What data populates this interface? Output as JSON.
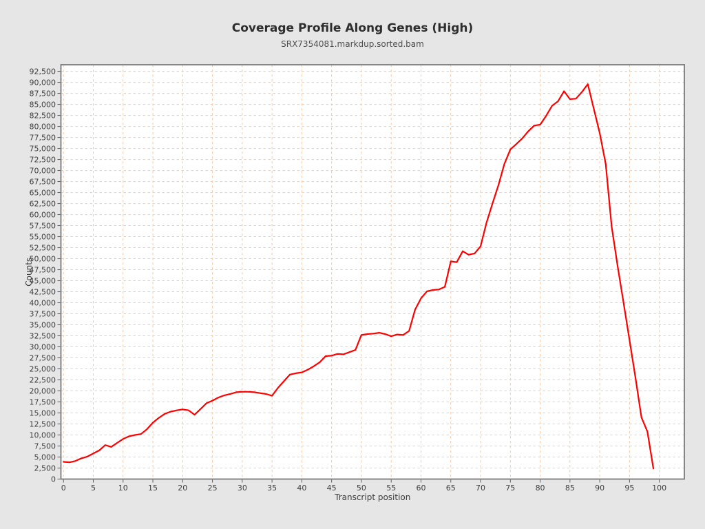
{
  "page": {
    "background": "#e6e6e6"
  },
  "chart_data": {
    "type": "line",
    "title": "Coverage Profile Along Genes (High)",
    "subtitle": "SRX7354081.markdup.sorted.bam",
    "xlabel": "Transcript position",
    "ylabel": "Counts",
    "xlim": [
      -0.43,
      104.2
    ],
    "ylim": [
      0,
      94000
    ],
    "x_ticks": [
      0,
      5,
      10,
      15,
      20,
      25,
      30,
      35,
      40,
      45,
      50,
      55,
      60,
      65,
      70,
      75,
      80,
      85,
      90,
      95,
      100
    ],
    "y_ticks": [
      0,
      2500,
      5000,
      7500,
      10000,
      12500,
      15000,
      17500,
      20000,
      22500,
      25000,
      27500,
      30000,
      32500,
      35000,
      37500,
      40000,
      42500,
      45000,
      47500,
      50000,
      52500,
      55000,
      57500,
      60000,
      62500,
      65000,
      67500,
      70000,
      72500,
      75000,
      77500,
      80000,
      82500,
      85000,
      87500,
      90000,
      92500
    ],
    "y_tick_format": "comma",
    "grid": true,
    "legend": "none",
    "x": [
      0,
      1,
      2,
      3,
      4,
      5,
      6,
      7,
      8,
      9,
      10,
      11,
      12,
      13,
      14,
      15,
      16,
      17,
      18,
      19,
      20,
      21,
      22,
      23,
      24,
      25,
      26,
      27,
      28,
      29,
      30,
      31,
      32,
      33,
      34,
      35,
      36,
      37,
      38,
      39,
      40,
      41,
      42,
      43,
      44,
      45,
      46,
      47,
      48,
      49,
      50,
      51,
      52,
      53,
      54,
      55,
      56,
      57,
      58,
      59,
      60,
      61,
      62,
      63,
      64,
      65,
      66,
      67,
      68,
      69,
      70,
      71,
      72,
      73,
      74,
      75,
      76,
      77,
      78,
      79,
      80,
      81,
      82,
      83,
      84,
      85,
      86,
      87,
      88,
      89,
      90,
      91,
      92,
      93,
      94,
      95,
      96,
      97,
      98,
      99
    ],
    "series": [
      {
        "name": "SRX7354081.markdup.sorted.bam",
        "color": "#fe0000",
        "values": [
          3900,
          3800,
          4100,
          4700,
          5100,
          5800,
          6500,
          7700,
          7300,
          8200,
          9100,
          9700,
          10000,
          10200,
          11300,
          12800,
          13900,
          14800,
          15300,
          15600,
          15800,
          15600,
          14600,
          15900,
          17200,
          17800,
          18500,
          19000,
          19300,
          19700,
          19800,
          19800,
          19700,
          19500,
          19300,
          18900,
          20700,
          22200,
          23700,
          24000,
          24200,
          24800,
          25600,
          26500,
          27900,
          28000,
          28400,
          28300,
          28800,
          29300,
          32700,
          32900,
          33000,
          33200,
          32900,
          32400,
          32800,
          32700,
          33600,
          38400,
          41000,
          42600,
          42900,
          43000,
          43600,
          49400,
          49200,
          51700,
          50900,
          51200,
          52800,
          58200,
          62500,
          66700,
          71500,
          74800,
          76000,
          77300,
          78900,
          80200,
          80400,
          82400,
          84700,
          85700,
          88000,
          86200,
          86300,
          87800,
          89600,
          84000,
          78500,
          71500,
          57300,
          48300,
          40000,
          31500,
          23000,
          14000,
          10800,
          2400
        ]
      }
    ],
    "styles": {
      "page_bg": "#e6e6e6",
      "plot_bg": "#ffffff",
      "grid_color": "#f5cba8",
      "border_color": "#7a7a7a",
      "tick_color": "#5a5a5a",
      "text_color": "#3d3d3d",
      "line_width": 2.2
    }
  }
}
